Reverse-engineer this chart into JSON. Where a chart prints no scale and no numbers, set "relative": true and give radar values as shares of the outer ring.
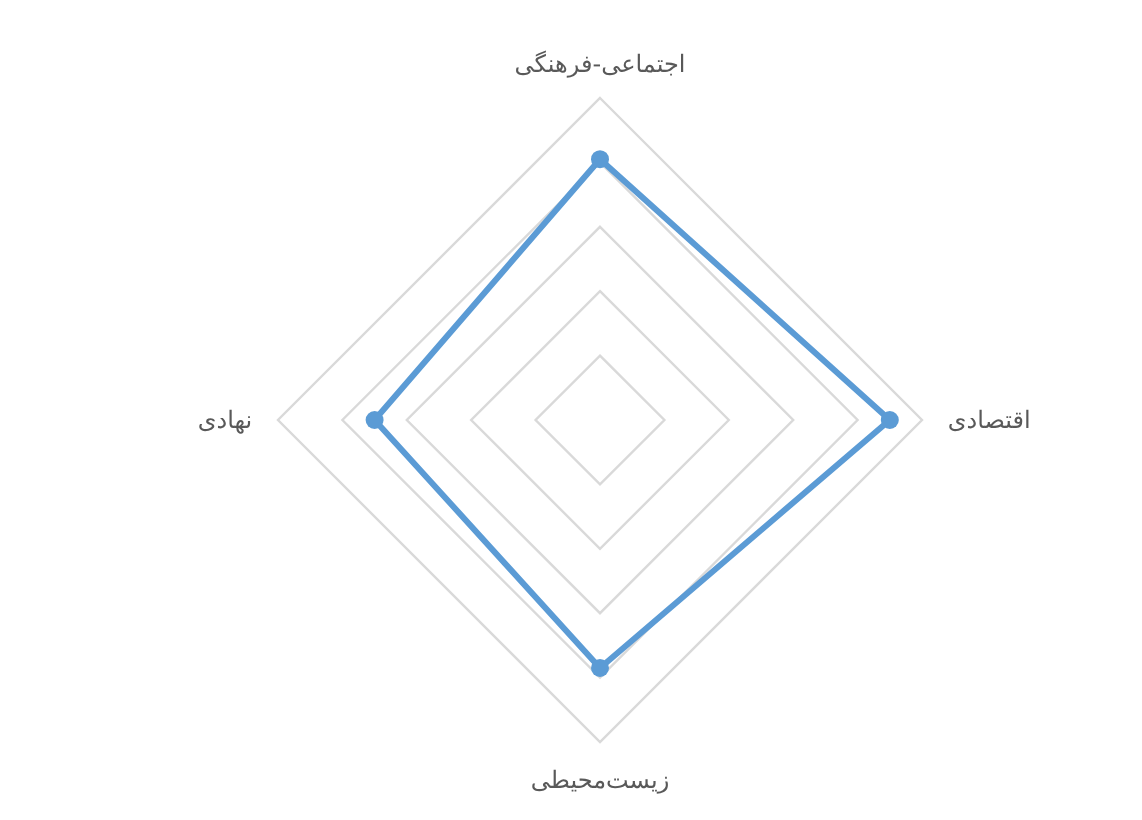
{
  "chart_data": {
    "type": "radar",
    "relative": true,
    "grid": true,
    "marker": "circle",
    "categories": [
      "اجتماعی-فرهنگی",
      "اقتصادی",
      "زیست‌محیطی",
      "نهادی"
    ],
    "series": [
      {
        "color": "#5b9bd5",
        "values": [
          0.81,
          0.9,
          0.77,
          0.7
        ]
      }
    ]
  }
}
